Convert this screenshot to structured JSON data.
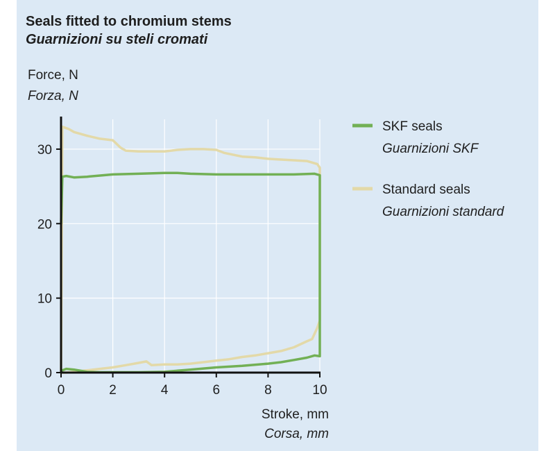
{
  "chart_data": {
    "type": "line",
    "title": "Seals fitted to chromium stems",
    "subtitle": "Guarnizioni su steli cromati",
    "ylabel": "Force, N",
    "ylabel_it": "Forza, N",
    "xlabel": "Stroke, mm",
    "xlabel_it": "Corsa, mm",
    "xlim": [
      0,
      10
    ],
    "ylim": [
      0,
      34
    ],
    "x_ticks": [
      "0",
      "2",
      "4",
      "6",
      "8",
      "10"
    ],
    "y_ticks": [
      "0",
      "10",
      "20",
      "30"
    ],
    "grid": true,
    "legend_position": "right",
    "series": [
      {
        "name": "Standard seals",
        "name_it": "Guarnizioni standard",
        "color": "#e3d9a8",
        "points": [
          [
            0,
            0
          ],
          [
            0.05,
            33
          ],
          [
            0.3,
            32.7
          ],
          [
            0.5,
            32.3
          ],
          [
            1,
            31.8
          ],
          [
            1.5,
            31.4
          ],
          [
            2,
            31.2
          ],
          [
            2.3,
            30.2
          ],
          [
            2.5,
            29.8
          ],
          [
            3,
            29.7
          ],
          [
            3.5,
            29.7
          ],
          [
            4,
            29.7
          ],
          [
            4.5,
            29.9
          ],
          [
            5,
            30
          ],
          [
            5.5,
            30
          ],
          [
            6,
            29.9
          ],
          [
            6.3,
            29.5
          ],
          [
            7,
            29
          ],
          [
            7.5,
            28.9
          ],
          [
            8,
            28.7
          ],
          [
            8.5,
            28.6
          ],
          [
            9,
            28.5
          ],
          [
            9.5,
            28.4
          ],
          [
            9.9,
            28
          ],
          [
            10,
            27.5
          ],
          [
            10,
            7
          ],
          [
            9.9,
            6
          ],
          [
            9.7,
            4.5
          ],
          [
            9.5,
            4.2
          ],
          [
            9,
            3.4
          ],
          [
            8.5,
            2.9
          ],
          [
            8,
            2.6
          ],
          [
            7.5,
            2.3
          ],
          [
            7,
            2.1
          ],
          [
            6.5,
            1.8
          ],
          [
            6,
            1.6
          ],
          [
            5.5,
            1.4
          ],
          [
            5,
            1.2
          ],
          [
            4.5,
            1.1
          ],
          [
            4,
            1.1
          ],
          [
            3.5,
            1.0
          ],
          [
            3.3,
            1.5
          ],
          [
            3,
            1.3
          ],
          [
            2.5,
            1.0
          ],
          [
            2,
            0.7
          ],
          [
            1.5,
            0.5
          ],
          [
            1,
            0.3
          ],
          [
            0.5,
            0.1
          ],
          [
            0.2,
            0
          ],
          [
            0,
            0
          ]
        ]
      },
      {
        "name": "SKF seals",
        "name_it": "Guarnizioni SKF",
        "color": "#72b055",
        "points": [
          [
            0,
            20
          ],
          [
            0.05,
            26.3
          ],
          [
            0.2,
            26.4
          ],
          [
            0.5,
            26.2
          ],
          [
            1,
            26.3
          ],
          [
            2,
            26.6
          ],
          [
            3,
            26.7
          ],
          [
            4,
            26.8
          ],
          [
            4.5,
            26.8
          ],
          [
            5,
            26.7
          ],
          [
            6,
            26.6
          ],
          [
            7,
            26.6
          ],
          [
            8,
            26.6
          ],
          [
            9,
            26.6
          ],
          [
            9.8,
            26.7
          ],
          [
            10,
            26.5
          ],
          [
            10,
            2.2
          ],
          [
            9.8,
            2.3
          ],
          [
            9.5,
            2.0
          ],
          [
            9,
            1.7
          ],
          [
            8.5,
            1.4
          ],
          [
            8,
            1.2
          ],
          [
            7,
            0.9
          ],
          [
            6,
            0.7
          ],
          [
            5,
            0.4
          ],
          [
            4.5,
            0.25
          ],
          [
            4,
            0.1
          ],
          [
            3,
            0.05
          ],
          [
            2,
            0.05
          ],
          [
            1.5,
            0.05
          ],
          [
            1,
            0.1
          ],
          [
            0.5,
            0.4
          ],
          [
            0.2,
            0.5
          ],
          [
            0.05,
            0.3
          ],
          [
            0,
            0
          ]
        ]
      }
    ]
  }
}
